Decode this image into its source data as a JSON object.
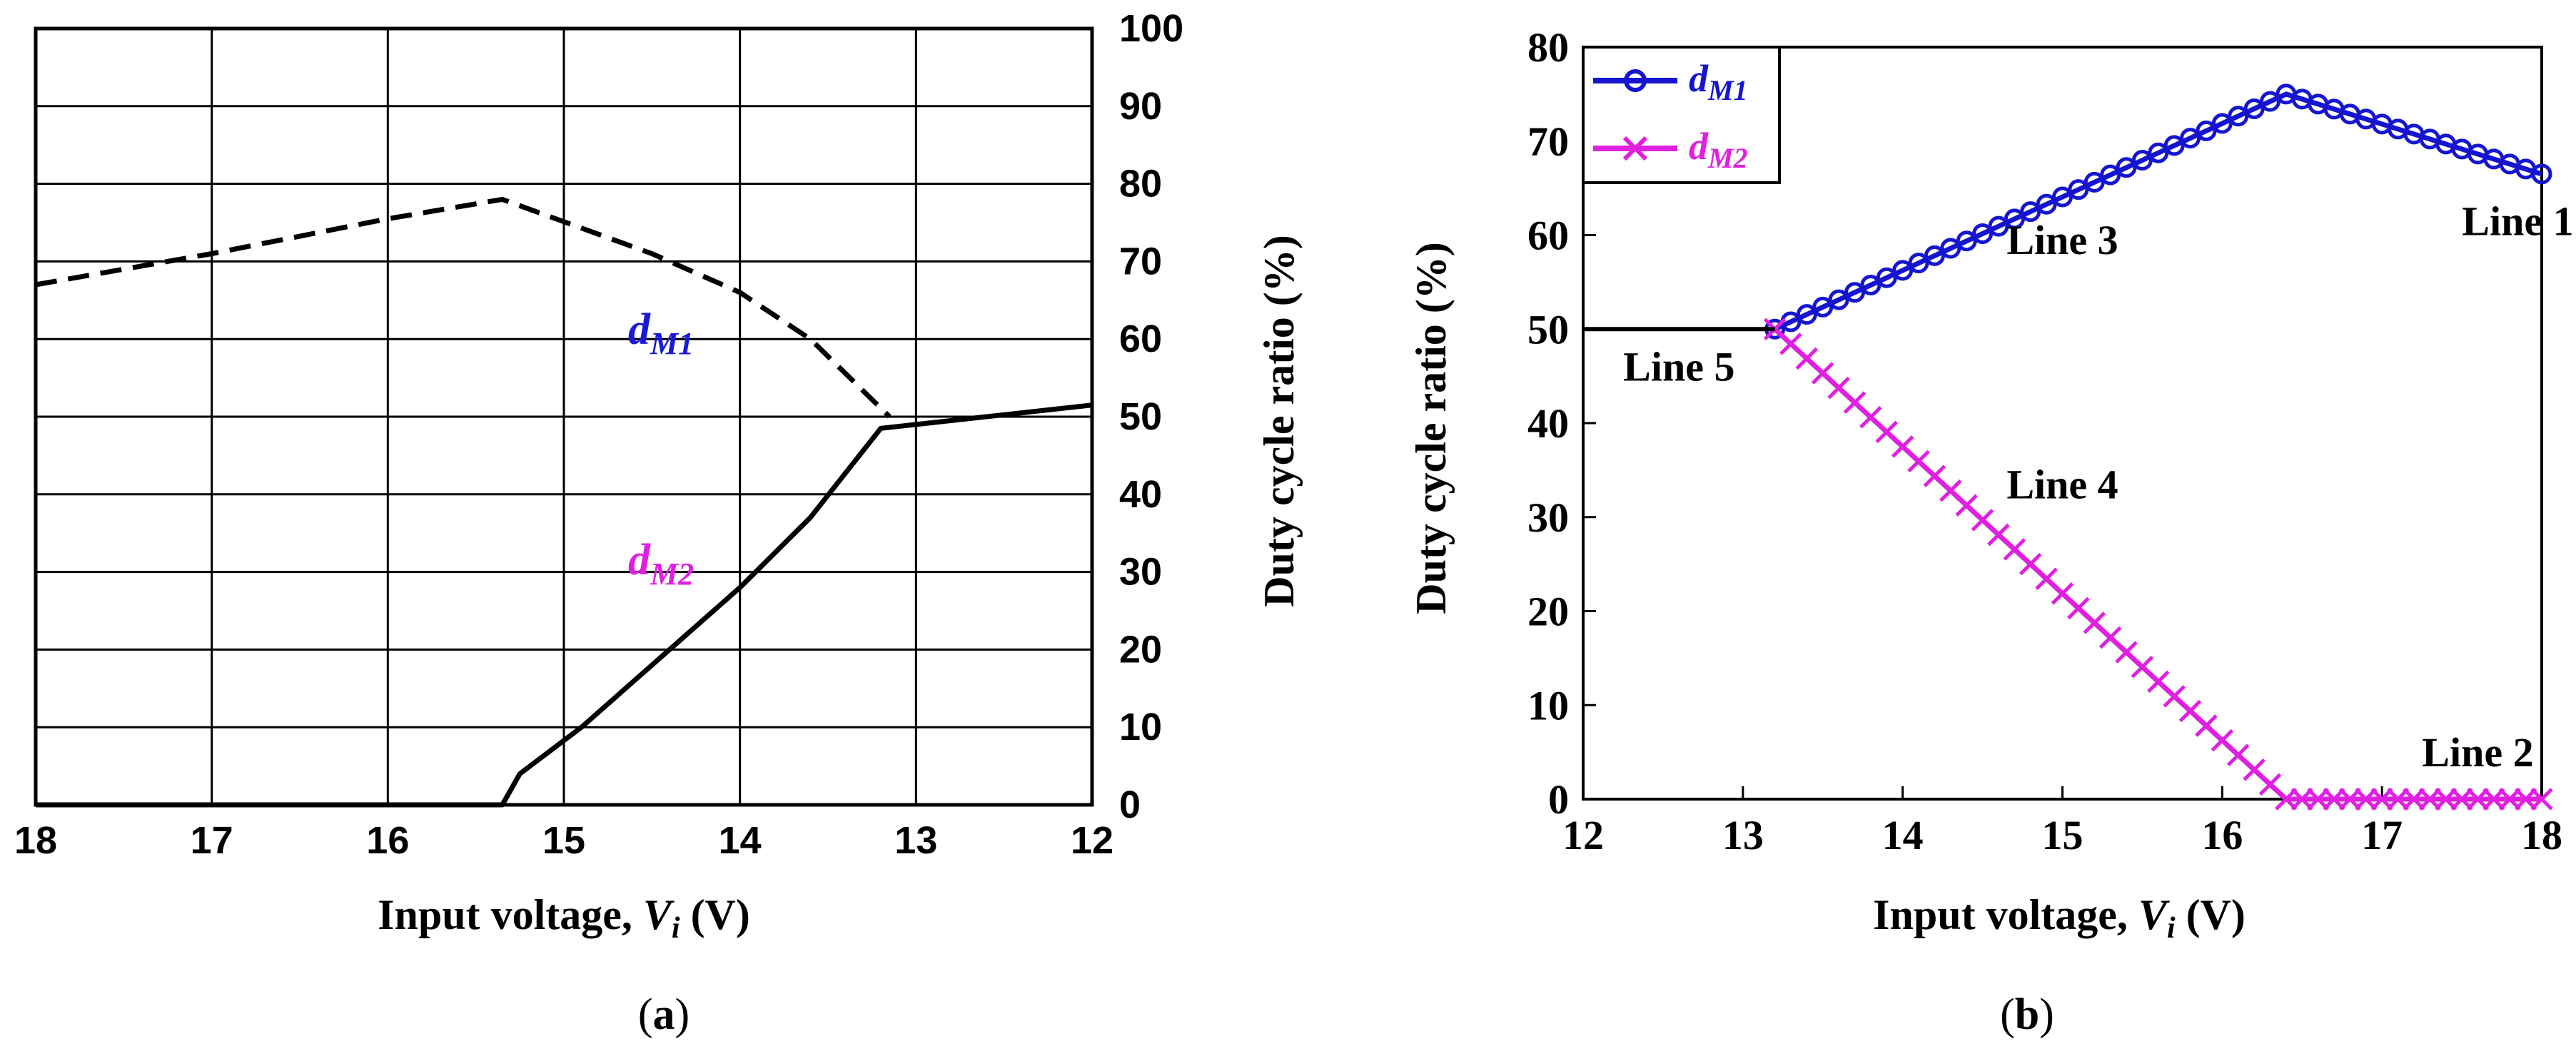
{
  "figure": {
    "panel_a": "(a)",
    "panel_b": "(b)"
  },
  "chart_data": [
    {
      "type": "line",
      "panel": "a",
      "xlabel_prefix": "Input voltage, ",
      "xlabel_var": "V",
      "xlabel_sub": "i",
      "xlabel_suffix": " (V)",
      "ylabel": "Duty cycle ratio (%)",
      "xlim": [
        18,
        12
      ],
      "ylim": [
        0,
        100
      ],
      "x_reversed": true,
      "y_axis_side": "right",
      "grid": true,
      "xticks": [
        "18",
        "17",
        "16",
        "15",
        "14",
        "13",
        "12"
      ],
      "yticks": [
        "0",
        "10",
        "20",
        "30",
        "40",
        "50",
        "60",
        "70",
        "80",
        "90",
        "100"
      ],
      "series": [
        {
          "label_main": "d",
          "label_sub": "M1",
          "color": "#1a1ad6",
          "style": "dashed",
          "points": [
            [
              18,
              67
            ],
            [
              17,
              71
            ],
            [
              16,
              75.5
            ],
            [
              15.35,
              78
            ],
            [
              14.5,
              71
            ],
            [
              14,
              66
            ],
            [
              13.6,
              60
            ],
            [
              13.15,
              50
            ]
          ]
        },
        {
          "label_main": "d",
          "label_sub": "M2",
          "color": "#e020e0",
          "style": "solid",
          "points": [
            [
              18,
              0
            ],
            [
              15.35,
              0
            ],
            [
              15.25,
              4
            ],
            [
              14.9,
              10
            ],
            [
              14.5,
              18
            ],
            [
              14,
              28
            ],
            [
              13.6,
              37
            ],
            [
              13.2,
              48.5
            ],
            [
              13,
              49
            ],
            [
              12,
              51.5
            ]
          ]
        }
      ]
    },
    {
      "type": "line",
      "panel": "b",
      "xlabel_prefix": "Input voltage, ",
      "xlabel_var": "V",
      "xlabel_sub": "i",
      "xlabel_suffix": " (V)",
      "ylabel": "Duty cycle ratio (%)",
      "xlim": [
        12,
        18
      ],
      "ylim": [
        0,
        80
      ],
      "grid": false,
      "legend": "top-left",
      "xticks": [
        "12",
        "13",
        "14",
        "15",
        "16",
        "17",
        "18"
      ],
      "yticks": [
        "0",
        "10",
        "20",
        "30",
        "40",
        "50",
        "60",
        "70",
        "80"
      ],
      "series": [
        {
          "label_main": "d",
          "label_sub": "M1",
          "color": "#1515d0",
          "marker": "circle",
          "points": [
            [
              13.2,
              50
            ],
            [
              16.4,
              75
            ],
            [
              18,
              66.5
            ]
          ]
        },
        {
          "label_main": "d",
          "label_sub": "M2",
          "color": "#e020e0",
          "marker": "x",
          "points": [
            [
              13.2,
              50
            ],
            [
              16.4,
              0
            ],
            [
              18,
              0
            ]
          ]
        },
        {
          "label_main": "",
          "label_sub": "",
          "color": "#000000",
          "marker": "none",
          "points": [
            [
              12,
              50
            ],
            [
              13.2,
              50
            ]
          ]
        }
      ],
      "annotations": [
        {
          "text": "Line 1",
          "x": 17.85,
          "y": 60
        },
        {
          "text": "Line 2",
          "x": 17.6,
          "y": 3.5
        },
        {
          "text": "Line 3",
          "x": 15.0,
          "y": 58
        },
        {
          "text": "Line 4",
          "x": 15.0,
          "y": 32
        },
        {
          "text": "Line 5",
          "x": 12.6,
          "y": 44.5
        }
      ]
    }
  ]
}
